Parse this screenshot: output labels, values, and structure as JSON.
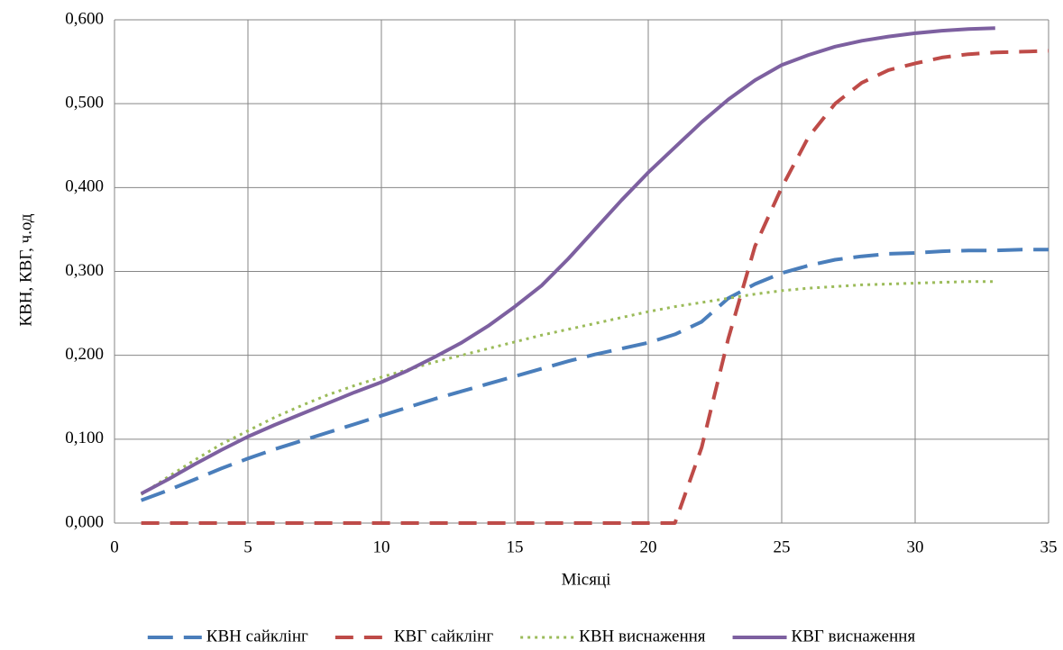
{
  "chart_data": {
    "type": "line",
    "x_label": "Місяці",
    "y_label": "КВН, КВГ, ч.од",
    "x": [
      1,
      2,
      3,
      4,
      5,
      6,
      7,
      8,
      9,
      10,
      11,
      12,
      13,
      14,
      15,
      16,
      17,
      18,
      19,
      20,
      21,
      22,
      23,
      24,
      25,
      26,
      27,
      28,
      29,
      30,
      31,
      32,
      33,
      34,
      35
    ],
    "series": [
      {
        "name": "КВН сайклінг",
        "color": "#4a7ebb",
        "values": [
          0.027,
          0.039,
          0.052,
          0.065,
          0.077,
          0.088,
          0.098,
          0.108,
          0.118,
          0.128,
          0.138,
          0.148,
          0.157,
          0.166,
          0.175,
          0.184,
          0.193,
          0.201,
          0.208,
          0.215,
          0.225,
          0.24,
          0.268,
          0.285,
          0.298,
          0.307,
          0.314,
          0.318,
          0.321,
          0.322,
          0.324,
          0.325,
          0.325,
          0.326,
          0.326
        ]
      },
      {
        "name": "КВГ сайклінг",
        "color": "#be4b48",
        "values": [
          0,
          0,
          0,
          0,
          0,
          0,
          0,
          0,
          0,
          0,
          0,
          0,
          0,
          0,
          0,
          0,
          0,
          0,
          0,
          0,
          0,
          0.09,
          0.22,
          0.33,
          0.4,
          0.46,
          0.5,
          0.525,
          0.54,
          0.548,
          0.555,
          0.559,
          0.561,
          0.562,
          0.563
        ]
      },
      {
        "name": "КВН виснаження",
        "color": "#9bbb59",
        "values": [
          0.034,
          0.055,
          0.075,
          0.094,
          0.11,
          0.126,
          0.14,
          0.153,
          0.164,
          0.174,
          0.183,
          0.192,
          0.2,
          0.208,
          0.216,
          0.224,
          0.231,
          0.238,
          0.245,
          0.252,
          0.258,
          0.263,
          0.268,
          0.273,
          0.277,
          0.28,
          0.282,
          0.284,
          0.285,
          0.286,
          0.287,
          0.288,
          0.288,
          null,
          null
        ]
      },
      {
        "name": "КВГ виснаження",
        "color": "#7d60a0",
        "values": [
          0.035,
          0.052,
          0.07,
          0.087,
          0.103,
          0.117,
          0.13,
          0.143,
          0.156,
          0.168,
          0.182,
          0.198,
          0.215,
          0.235,
          0.258,
          0.283,
          0.315,
          0.35,
          0.385,
          0.418,
          0.448,
          0.478,
          0.505,
          0.528,
          0.546,
          0.558,
          0.568,
          0.575,
          0.58,
          0.584,
          0.587,
          0.589,
          0.59,
          null,
          null
        ]
      }
    ],
    "xlim": [
      0,
      35
    ],
    "xticks": [
      0,
      5,
      10,
      15,
      20,
      25,
      30,
      35
    ],
    "ylim": [
      0,
      0.6
    ],
    "yticks": [
      {
        "value": 0,
        "label": "0,000"
      },
      {
        "value": 0.1,
        "label": "0,100"
      },
      {
        "value": 0.2,
        "label": "0,200"
      },
      {
        "value": 0.3,
        "label": "0,300"
      },
      {
        "value": 0.4,
        "label": "0,400"
      },
      {
        "value": 0.5,
        "label": "0,500"
      },
      {
        "value": 0.6,
        "label": "0,600"
      }
    ],
    "grid": true,
    "legend": "bottom"
  }
}
